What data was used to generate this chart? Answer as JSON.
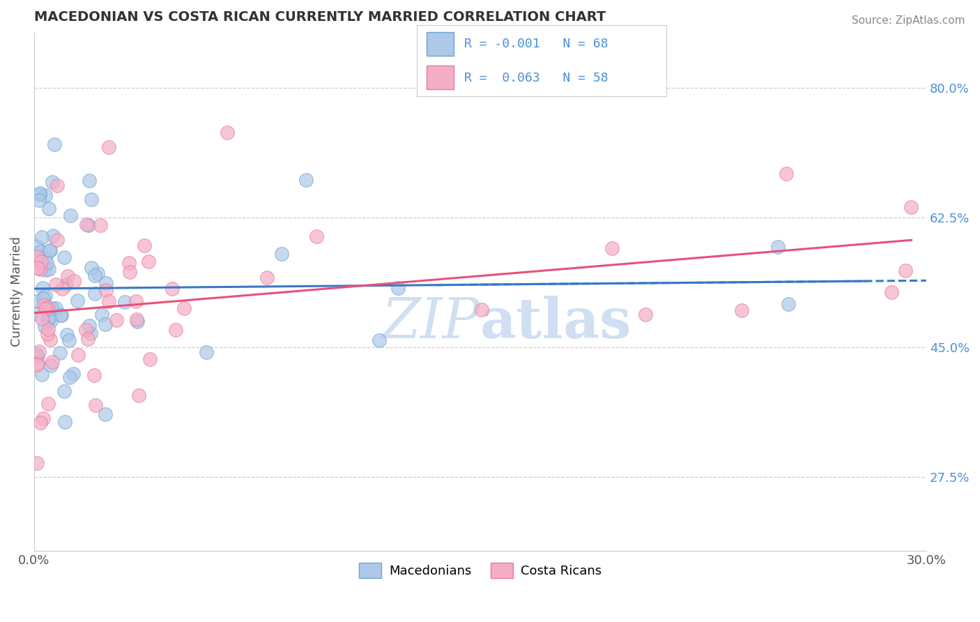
{
  "title": "MACEDONIAN VS COSTA RICAN CURRENTLY MARRIED CORRELATION CHART",
  "source": "Source: ZipAtlas.com",
  "ylabel": "Currently Married",
  "xlim": [
    0.0,
    0.3
  ],
  "ylim": [
    0.175,
    0.875
  ],
  "yticks": [
    0.275,
    0.45,
    0.625,
    0.8
  ],
  "ytick_labels": [
    "27.5%",
    "45.0%",
    "62.5%",
    "80.0%"
  ],
  "macedonian_color": "#adc8e8",
  "costarican_color": "#f5aec5",
  "macedonian_edge": "#6ea4d4",
  "costarican_edge": "#e8789a",
  "blue_line_color": "#3878c8",
  "pink_line_color": "#e8507a",
  "background_color": "#ffffff",
  "grid_color": "#c8c8d8",
  "watermark_color": "#c8daf0",
  "title_color": "#333333",
  "ylabel_color": "#555555",
  "tick_color": "#555555",
  "ytick_color_right": "#4a90d9",
  "source_color": "#888888",
  "legend_text_color": "#4a90d9",
  "legend_R_mac": "-0.001",
  "legend_N_mac": "68",
  "legend_R_cr": " 0.063",
  "legend_N_cr": "58"
}
